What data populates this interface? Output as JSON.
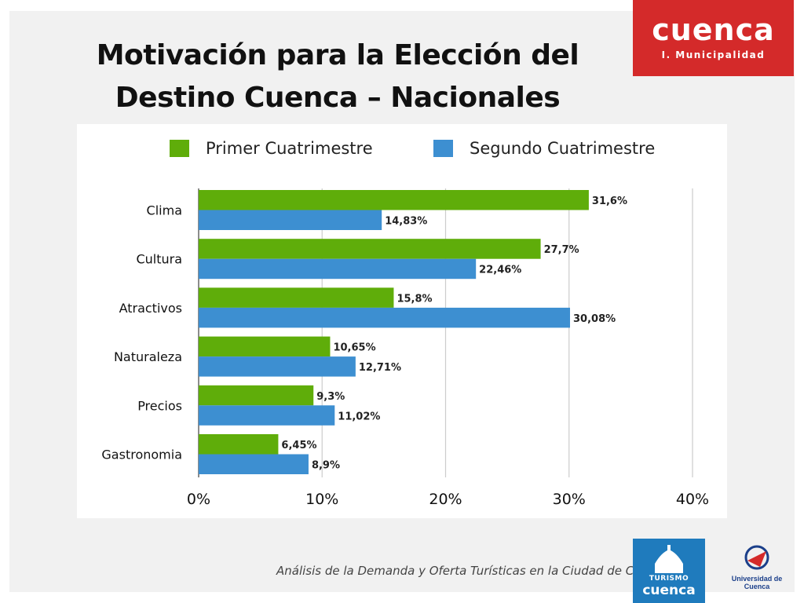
{
  "title_line1": "Motivación para la Elección del",
  "title_line2": "Destino Cuenca – Nacionales",
  "logo_cuenca": {
    "word": "cuenca",
    "sub": "I. Municipalidad"
  },
  "footer": "Análisis de la Demanda y Oferta Turísticas en la Ciudad de Cuenca",
  "logo_turismo": {
    "line1": "TURISMO",
    "line2": "cuenca"
  },
  "logo_udc": {
    "name": "Universidad de Cuenca"
  },
  "colors": {
    "green": "#5fad0a",
    "blue": "#3d8fd1"
  },
  "chart_data": {
    "type": "bar",
    "orientation": "horizontal",
    "categories": [
      "Clima",
      "Cultura",
      "Atractivos",
      "Naturaleza",
      "Precios",
      "Gastronomia"
    ],
    "series": [
      {
        "name": "Primer Cuatrimestre",
        "values": [
          31.6,
          27.7,
          15.8,
          10.65,
          9.3,
          6.45
        ],
        "labels": [
          "31,6%",
          "27,7%",
          "15,8%",
          "10,65%",
          "9,3%",
          "6,45%"
        ]
      },
      {
        "name": "Segundo Cuatrimestre",
        "values": [
          14.83,
          22.46,
          30.08,
          12.71,
          11.02,
          8.9
        ],
        "labels": [
          "14,83%",
          "22,46%",
          "30,08%",
          "12,71%",
          "11,02%",
          "8,9%"
        ]
      }
    ],
    "xlim": [
      0,
      40
    ],
    "xticks": [
      "0%",
      "10%",
      "20%",
      "30%",
      "40%"
    ],
    "legend_position": "top",
    "grid": true
  }
}
